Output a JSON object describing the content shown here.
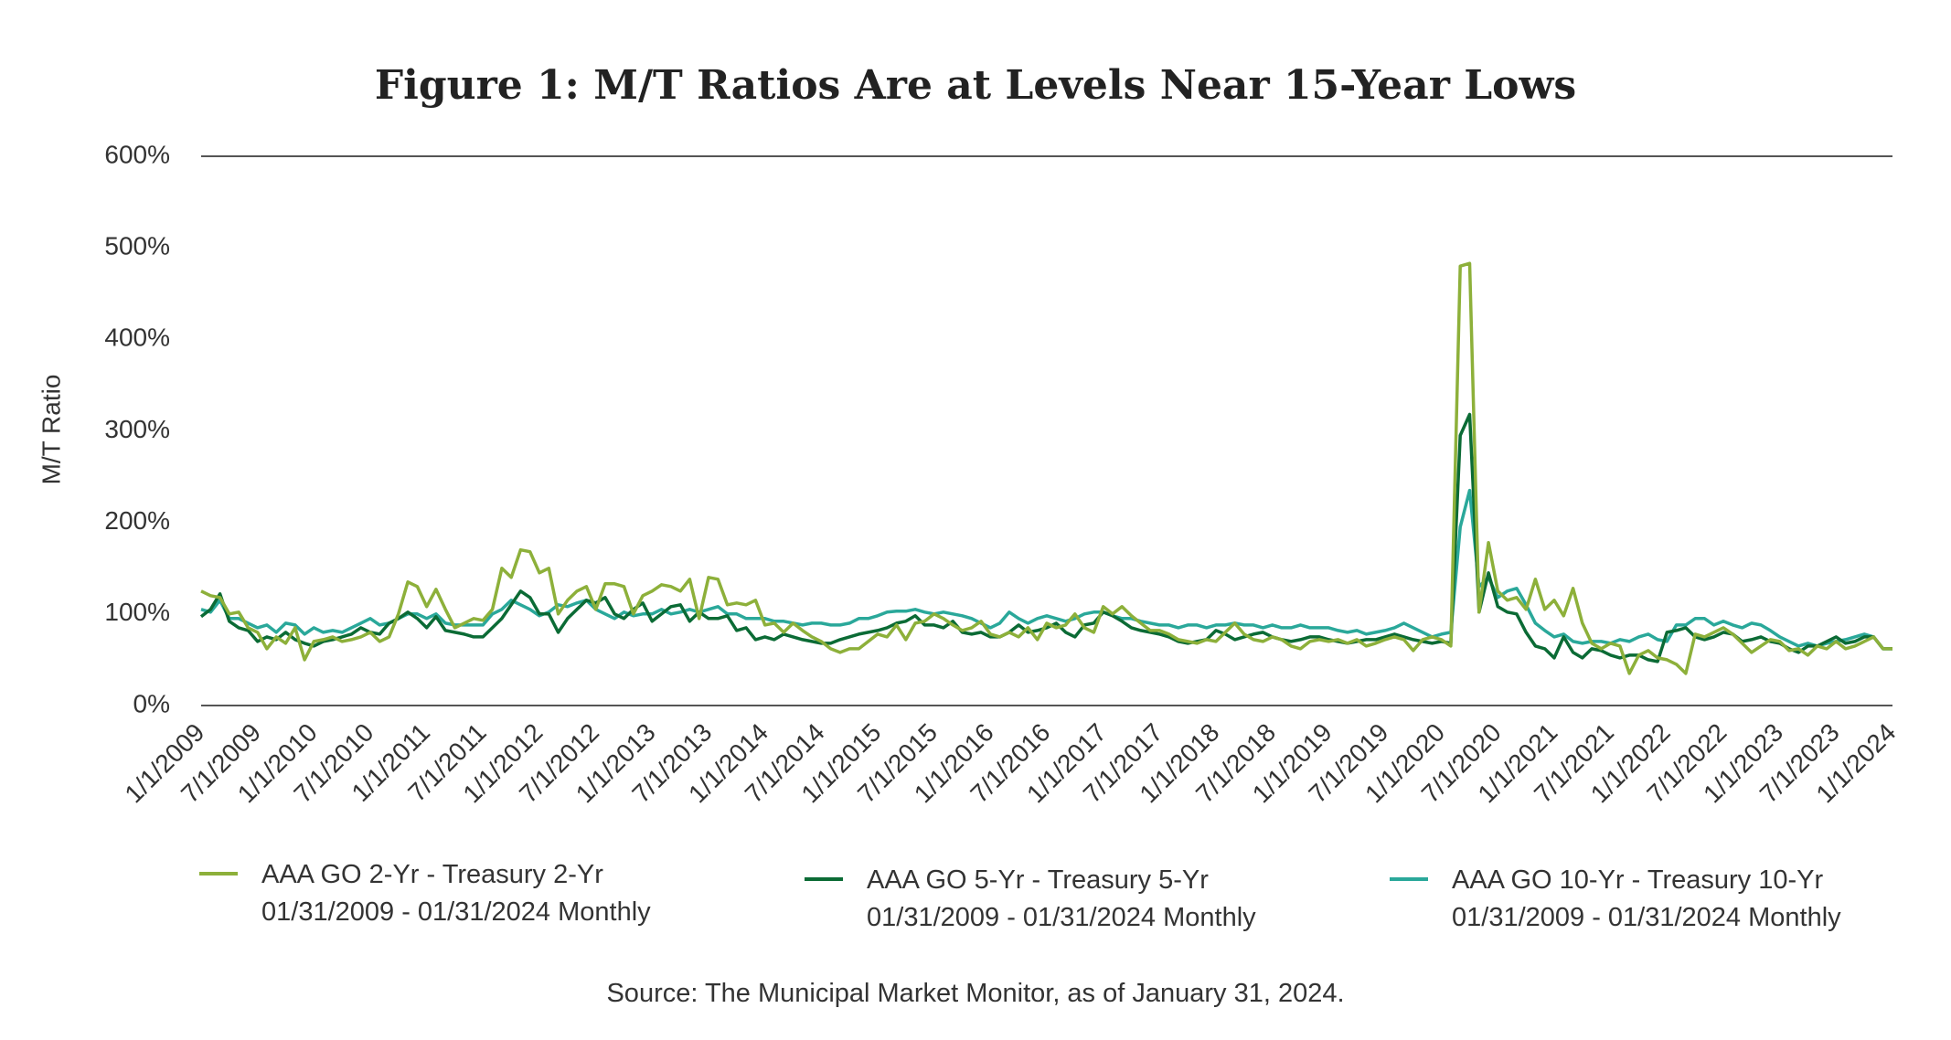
{
  "chart_data": {
    "type": "line",
    "title": "Figure 1: M/T Ratios Are at Levels Near 15-Year Lows",
    "y_label": "M/T Ratio",
    "source": "Source: The Municipal Market Monitor, as of January 31, 2024.",
    "categories": [
      "1/1/2009",
      null,
      null,
      null,
      null,
      null,
      "7/1/2009",
      null,
      null,
      null,
      null,
      null,
      "1/1/2010",
      null,
      null,
      null,
      null,
      null,
      "7/1/2010",
      null,
      null,
      null,
      null,
      null,
      "1/1/2011",
      null,
      null,
      null,
      null,
      null,
      "7/1/2011",
      null,
      null,
      null,
      null,
      null,
      "1/1/2012",
      null,
      null,
      null,
      null,
      null,
      "7/1/2012",
      null,
      null,
      null,
      null,
      null,
      "1/1/2013",
      null,
      null,
      null,
      null,
      null,
      "7/1/2013",
      null,
      null,
      null,
      null,
      null,
      "1/1/2014",
      null,
      null,
      null,
      null,
      null,
      "7/1/2014",
      null,
      null,
      null,
      null,
      null,
      "1/1/2015",
      null,
      null,
      null,
      null,
      null,
      "7/1/2015",
      null,
      null,
      null,
      null,
      null,
      "1/1/2016",
      null,
      null,
      null,
      null,
      null,
      "7/1/2016",
      null,
      null,
      null,
      null,
      null,
      "1/1/2017",
      null,
      null,
      null,
      null,
      null,
      "7/1/2017",
      null,
      null,
      null,
      null,
      null,
      "1/1/2018",
      null,
      null,
      null,
      null,
      null,
      "7/1/2018",
      null,
      null,
      null,
      null,
      null,
      "1/1/2019",
      null,
      null,
      null,
      null,
      null,
      "7/1/2019",
      null,
      null,
      null,
      null,
      null,
      "1/1/2020",
      null,
      null,
      null,
      null,
      null,
      "7/1/2020",
      null,
      null,
      null,
      null,
      null,
      "1/1/2021",
      null,
      null,
      null,
      null,
      null,
      "7/1/2021",
      null,
      null,
      null,
      null,
      null,
      "1/1/2022",
      null,
      null,
      null,
      null,
      null,
      "7/1/2022",
      null,
      null,
      null,
      null,
      null,
      "1/1/2023",
      null,
      null,
      null,
      null,
      null,
      "7/1/2023",
      null,
      null,
      null,
      null,
      null,
      "1/1/2024"
    ],
    "series": [
      {
        "name": "AAA GO 2-Yr - Treasury 2-Yr",
        "period": "01/31/2009 - 01/31/2024 Monthly",
        "color": "#8db03a",
        "values": [
          125,
          120,
          118,
          100,
          102,
          85,
          80,
          62,
          75,
          68,
          85,
          50,
          70,
          72,
          75,
          70,
          72,
          75,
          80,
          70,
          75,
          100,
          135,
          130,
          108,
          127,
          105,
          85,
          90,
          95,
          93,
          105,
          150,
          140,
          170,
          168,
          145,
          150,
          100,
          115,
          125,
          130,
          105,
          133,
          133,
          130,
          100,
          120,
          125,
          132,
          130,
          125,
          138,
          95,
          140,
          138,
          110,
          112,
          110,
          115,
          88,
          90,
          80,
          90,
          82,
          75,
          70,
          62,
          58,
          62,
          62,
          70,
          78,
          75,
          88,
          72,
          90,
          92,
          100,
          95,
          88,
          82,
          85,
          92,
          78,
          75,
          80,
          75,
          85,
          72,
          90,
          85,
          88,
          100,
          85,
          80,
          108,
          100,
          108,
          98,
          90,
          82,
          82,
          78,
          72,
          70,
          68,
          72,
          70,
          80,
          90,
          78,
          72,
          70,
          75,
          72,
          65,
          62,
          70,
          72,
          70,
          72,
          68,
          72,
          65,
          68,
          72,
          75,
          72,
          60,
          72,
          75,
          72,
          65,
          480,
          483,
          102,
          178,
          125,
          115,
          118,
          105,
          138,
          105,
          115,
          98,
          128,
          90,
          68,
          62,
          68,
          65,
          35,
          55,
          60,
          52,
          50,
          45,
          35,
          78,
          75,
          80,
          85,
          78,
          68,
          58,
          65,
          72,
          70,
          60,
          62,
          55,
          65,
          62,
          70,
          62,
          65,
          70,
          75,
          62,
          62
        ]
      },
      {
        "name": "AAA GO 5-Yr - Treasury 5-Yr",
        "period": "01/31/2009 - 01/31/2024 Monthly",
        "color": "#0b6b35",
        "values": [
          97,
          105,
          122,
          92,
          85,
          82,
          70,
          75,
          72,
          80,
          72,
          68,
          65,
          70,
          72,
          75,
          78,
          85,
          80,
          78,
          90,
          95,
          102,
          95,
          85,
          97,
          82,
          80,
          78,
          75,
          75,
          85,
          95,
          110,
          125,
          118,
          100,
          100,
          80,
          95,
          105,
          115,
          112,
          118,
          100,
          95,
          105,
          112,
          92,
          100,
          108,
          110,
          92,
          102,
          95,
          95,
          98,
          82,
          85,
          72,
          75,
          72,
          78,
          75,
          72,
          70,
          68,
          68,
          72,
          75,
          78,
          80,
          82,
          85,
          90,
          92,
          98,
          88,
          88,
          85,
          92,
          80,
          78,
          80,
          75,
          75,
          80,
          88,
          80,
          82,
          85,
          90,
          80,
          75,
          88,
          90,
          102,
          98,
          92,
          85,
          82,
          80,
          78,
          75,
          70,
          68,
          70,
          72,
          82,
          78,
          72,
          75,
          78,
          80,
          75,
          72,
          70,
          72,
          75,
          75,
          72,
          70,
          68,
          70,
          72,
          72,
          75,
          78,
          75,
          72,
          70,
          68,
          70,
          68,
          295,
          318,
          102,
          145,
          108,
          102,
          100,
          80,
          65,
          62,
          52,
          75,
          58,
          52,
          62,
          60,
          55,
          52,
          55,
          55,
          50,
          48,
          80,
          82,
          85,
          75,
          72,
          75,
          80,
          78,
          70,
          72,
          75,
          70,
          68,
          62,
          58,
          65,
          65,
          70,
          75,
          68,
          70,
          75,
          75,
          62,
          62
        ]
      },
      {
        "name": "AAA GO 10-Yr - Treasury 10-Yr",
        "period": "01/31/2009 - 01/31/2024 Monthly",
        "color": "#2aa89a",
        "values": [
          105,
          102,
          115,
          95,
          95,
          90,
          85,
          88,
          80,
          90,
          88,
          78,
          85,
          80,
          82,
          80,
          85,
          90,
          95,
          88,
          90,
          95,
          100,
          100,
          95,
          100,
          90,
          88,
          88,
          88,
          88,
          100,
          105,
          115,
          110,
          105,
          98,
          102,
          110,
          108,
          112,
          115,
          105,
          100,
          95,
          102,
          98,
          100,
          100,
          105,
          100,
          102,
          105,
          102,
          105,
          108,
          100,
          100,
          95,
          95,
          95,
          92,
          92,
          90,
          88,
          90,
          90,
          88,
          88,
          90,
          95,
          95,
          98,
          102,
          103,
          103,
          105,
          102,
          100,
          102,
          100,
          98,
          95,
          90,
          85,
          90,
          102,
          95,
          90,
          95,
          98,
          95,
          92,
          95,
          100,
          102,
          102,
          98,
          95,
          95,
          92,
          90,
          88,
          88,
          85,
          88,
          88,
          85,
          88,
          88,
          90,
          88,
          88,
          85,
          88,
          85,
          85,
          88,
          85,
          85,
          85,
          82,
          80,
          82,
          78,
          80,
          82,
          85,
          90,
          85,
          80,
          75,
          78,
          80,
          195,
          235,
          130,
          140,
          118,
          125,
          128,
          110,
          90,
          82,
          75,
          78,
          70,
          68,
          70,
          70,
          68,
          72,
          70,
          75,
          78,
          72,
          70,
          88,
          88,
          95,
          95,
          88,
          92,
          88,
          85,
          90,
          88,
          82,
          75,
          70,
          65,
          68,
          65,
          68,
          70,
          72,
          75,
          78,
          75,
          62,
          62
        ]
      }
    ],
    "ylim": [
      0,
      600
    ],
    "yticks": [
      {
        "value": 0,
        "label": "0%"
      },
      {
        "value": 100,
        "label": "100%"
      },
      {
        "value": 200,
        "label": "200%"
      },
      {
        "value": 300,
        "label": "300%"
      },
      {
        "value": 400,
        "label": "400%"
      },
      {
        "value": 500,
        "label": "500%"
      },
      {
        "value": 600,
        "label": "600%"
      }
    ],
    "grid": false
  }
}
